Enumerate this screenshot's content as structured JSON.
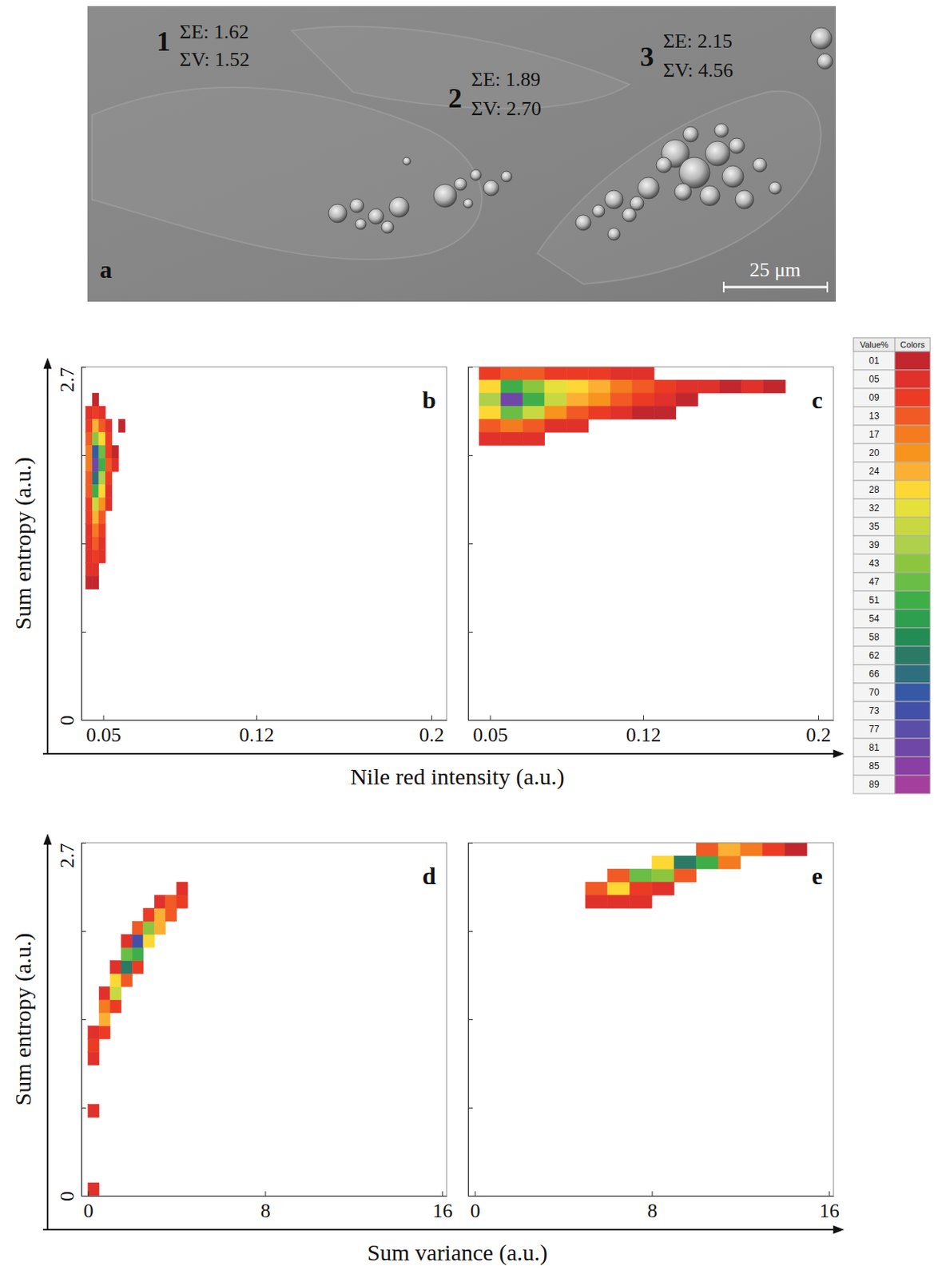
{
  "image": {
    "label": "a",
    "scale_bar": "25 μm",
    "regions": [
      {
        "label": "1",
        "entropy": "ΣE: 1.62",
        "variance": "ΣV: 1.52"
      },
      {
        "label": "2",
        "entropy": "ΣE: 1.89",
        "variance": "ΣV: 2.70"
      },
      {
        "label": "3",
        "entropy": "ΣE: 2.15",
        "variance": "ΣV: 4.56"
      }
    ]
  },
  "chart_data": [
    {
      "type": "heatmap",
      "label": "b",
      "xlabel": "Nile red intensity (a.u.)",
      "ylabel": "Sum entropy (a.u.)",
      "xlim": [
        0.04,
        0.207
      ],
      "xticks": [
        0.05,
        0.12,
        0.2
      ],
      "ylim": [
        0,
        2.7
      ],
      "yticks": [
        0,
        {
          "value": 0.675,
          "label": null
        },
        {
          "value": 1.35,
          "label": null
        },
        {
          "value": 2.025,
          "label": null
        },
        2.7
      ],
      "bin_size": [
        0.003,
        0.1
      ],
      "cells": [
        [
          0.0465,
          2.45,
          1
        ],
        [
          0.0435,
          2.35,
          5
        ],
        [
          0.0465,
          2.35,
          9
        ],
        [
          0.0495,
          2.35,
          5
        ],
        [
          0.0435,
          2.25,
          9
        ],
        [
          0.0465,
          2.25,
          24
        ],
        [
          0.0495,
          2.25,
          13
        ],
        [
          0.0525,
          2.25,
          5
        ],
        [
          0.0585,
          2.25,
          1
        ],
        [
          0.0435,
          2.15,
          13
        ],
        [
          0.0465,
          2.15,
          43
        ],
        [
          0.0495,
          2.15,
          28
        ],
        [
          0.0525,
          2.15,
          9
        ],
        [
          0.0435,
          2.05,
          17
        ],
        [
          0.0465,
          2.05,
          70
        ],
        [
          0.0495,
          2.05,
          47
        ],
        [
          0.0525,
          2.05,
          9
        ],
        [
          0.0555,
          2.05,
          1
        ],
        [
          0.0435,
          1.95,
          17
        ],
        [
          0.0465,
          1.95,
          81
        ],
        [
          0.0495,
          1.95,
          51
        ],
        [
          0.0525,
          1.95,
          13
        ],
        [
          0.0555,
          1.95,
          5
        ],
        [
          0.0435,
          1.85,
          13
        ],
        [
          0.0465,
          1.85,
          66
        ],
        [
          0.0495,
          1.85,
          39
        ],
        [
          0.0525,
          1.85,
          9
        ],
        [
          0.0435,
          1.75,
          13
        ],
        [
          0.0465,
          1.75,
          51
        ],
        [
          0.0495,
          1.75,
          28
        ],
        [
          0.0525,
          1.75,
          5
        ],
        [
          0.0435,
          1.65,
          9
        ],
        [
          0.0465,
          1.65,
          35
        ],
        [
          0.0495,
          1.65,
          20
        ],
        [
          0.0525,
          1.65,
          5
        ],
        [
          0.0435,
          1.55,
          9
        ],
        [
          0.0465,
          1.55,
          24
        ],
        [
          0.0495,
          1.55,
          13
        ],
        [
          0.0435,
          1.45,
          5
        ],
        [
          0.0465,
          1.45,
          17
        ],
        [
          0.0495,
          1.45,
          9
        ],
        [
          0.0435,
          1.35,
          5
        ],
        [
          0.0465,
          1.35,
          13
        ],
        [
          0.0495,
          1.35,
          5
        ],
        [
          0.0435,
          1.25,
          5
        ],
        [
          0.0465,
          1.25,
          9
        ],
        [
          0.0495,
          1.25,
          5
        ],
        [
          0.0435,
          1.15,
          5
        ],
        [
          0.0465,
          1.15,
          5
        ],
        [
          0.0435,
          1.05,
          1
        ],
        [
          0.0465,
          1.05,
          1
        ]
      ]
    },
    {
      "type": "heatmap",
      "label": "c",
      "tick_labels": "x",
      "xlim": [
        0.04,
        0.207
      ],
      "xticks": [
        0.05,
        0.12,
        0.2
      ],
      "ylim": [
        0,
        2.7
      ],
      "yticks": [
        0,
        0.675,
        1.35,
        2.025,
        2.7
      ],
      "bin_size": [
        0.01,
        0.1
      ],
      "cells": [
        [
          0.05,
          2.65,
          9
        ],
        [
          0.06,
          2.65,
          13
        ],
        [
          0.07,
          2.65,
          13
        ],
        [
          0.08,
          2.65,
          9
        ],
        [
          0.09,
          2.65,
          9
        ],
        [
          0.1,
          2.65,
          9
        ],
        [
          0.11,
          2.65,
          5
        ],
        [
          0.12,
          2.65,
          5
        ],
        [
          0.05,
          2.55,
          28
        ],
        [
          0.06,
          2.55,
          51
        ],
        [
          0.07,
          2.55,
          43
        ],
        [
          0.08,
          2.55,
          32
        ],
        [
          0.09,
          2.55,
          28
        ],
        [
          0.1,
          2.55,
          24
        ],
        [
          0.11,
          2.55,
          17
        ],
        [
          0.12,
          2.55,
          13
        ],
        [
          0.13,
          2.55,
          9
        ],
        [
          0.14,
          2.55,
          5
        ],
        [
          0.15,
          2.55,
          5
        ],
        [
          0.16,
          2.55,
          1
        ],
        [
          0.17,
          2.55,
          5
        ],
        [
          0.18,
          2.55,
          1
        ],
        [
          0.05,
          2.45,
          39
        ],
        [
          0.06,
          2.45,
          81
        ],
        [
          0.07,
          2.45,
          51
        ],
        [
          0.08,
          2.45,
          35
        ],
        [
          0.09,
          2.45,
          24
        ],
        [
          0.1,
          2.45,
          20
        ],
        [
          0.11,
          2.45,
          13
        ],
        [
          0.12,
          2.45,
          9
        ],
        [
          0.13,
          2.45,
          5
        ],
        [
          0.14,
          2.45,
          1
        ],
        [
          0.05,
          2.35,
          28
        ],
        [
          0.06,
          2.35,
          47
        ],
        [
          0.07,
          2.35,
          35
        ],
        [
          0.08,
          2.35,
          20
        ],
        [
          0.09,
          2.35,
          13
        ],
        [
          0.1,
          2.35,
          9
        ],
        [
          0.11,
          2.35,
          5
        ],
        [
          0.12,
          2.35,
          1
        ],
        [
          0.13,
          2.35,
          1
        ],
        [
          0.05,
          2.25,
          13
        ],
        [
          0.06,
          2.25,
          17
        ],
        [
          0.07,
          2.25,
          13
        ],
        [
          0.08,
          2.25,
          5
        ],
        [
          0.09,
          2.25,
          5
        ],
        [
          0.05,
          2.15,
          5
        ],
        [
          0.06,
          2.15,
          5
        ],
        [
          0.07,
          2.15,
          5
        ]
      ]
    },
    {
      "type": "heatmap",
      "label": "d",
      "xlabel": "Sum variance (a.u.)",
      "ylabel": "Sum entropy (a.u.)",
      "xlim": [
        -0.3,
        16.2
      ],
      "xticks": [
        0,
        8,
        16
      ],
      "ylim": [
        0,
        2.7
      ],
      "yticks": [
        0,
        {
          "value": 0.675,
          "label": null
        },
        {
          "value": 1.35,
          "label": null
        },
        {
          "value": 2.025,
          "label": null
        },
        2.7
      ],
      "bin_size": [
        0.5,
        0.1
      ],
      "cells": [
        [
          0.25,
          0.05,
          5
        ],
        [
          0.25,
          0.65,
          5
        ],
        [
          0.25,
          1.05,
          5
        ],
        [
          0.25,
          1.15,
          9
        ],
        [
          0.25,
          1.25,
          5
        ],
        [
          0.75,
          1.25,
          9
        ],
        [
          0.75,
          1.35,
          24
        ],
        [
          0.75,
          1.45,
          17
        ],
        [
          0.75,
          1.55,
          5
        ],
        [
          1.25,
          1.45,
          9
        ],
        [
          1.25,
          1.55,
          35
        ],
        [
          1.25,
          1.65,
          28
        ],
        [
          1.25,
          1.75,
          5
        ],
        [
          1.75,
          1.65,
          13
        ],
        [
          1.75,
          1.75,
          62
        ],
        [
          1.75,
          1.85,
          47
        ],
        [
          1.75,
          1.95,
          5
        ],
        [
          2.25,
          1.75,
          9
        ],
        [
          2.25,
          1.85,
          51
        ],
        [
          2.25,
          1.95,
          73
        ],
        [
          2.25,
          2.05,
          13
        ],
        [
          2.75,
          1.95,
          28
        ],
        [
          2.75,
          2.05,
          43
        ],
        [
          2.75,
          2.15,
          9
        ],
        [
          3.25,
          2.05,
          24
        ],
        [
          3.25,
          2.15,
          24
        ],
        [
          3.25,
          2.25,
          5
        ],
        [
          3.75,
          2.15,
          13
        ],
        [
          3.75,
          2.25,
          13
        ],
        [
          4.25,
          2.25,
          9
        ],
        [
          4.25,
          2.35,
          5
        ]
      ]
    },
    {
      "type": "heatmap",
      "label": "e",
      "tick_labels": "x",
      "xlim": [
        -0.3,
        16.2
      ],
      "xticks": [
        0,
        8,
        16
      ],
      "ylim": [
        0,
        2.7
      ],
      "yticks": [
        0,
        0.675,
        1.35,
        2.025,
        2.7
      ],
      "bin_size": [
        1,
        0.1
      ],
      "cells": [
        [
          5.5,
          2.35,
          13
        ],
        [
          5.5,
          2.25,
          5
        ],
        [
          6.5,
          2.35,
          28
        ],
        [
          6.5,
          2.45,
          13
        ],
        [
          6.5,
          2.25,
          5
        ],
        [
          7.5,
          2.45,
          47
        ],
        [
          7.5,
          2.35,
          9
        ],
        [
          7.5,
          2.25,
          5
        ],
        [
          8.5,
          2.45,
          43
        ],
        [
          8.5,
          2.55,
          28
        ],
        [
          8.5,
          2.35,
          5
        ],
        [
          9.5,
          2.55,
          62
        ],
        [
          9.5,
          2.45,
          13
        ],
        [
          10.5,
          2.55,
          51
        ],
        [
          10.5,
          2.65,
          13
        ],
        [
          11.5,
          2.55,
          17
        ],
        [
          11.5,
          2.65,
          24
        ],
        [
          12.5,
          2.65,
          17
        ],
        [
          13.5,
          2.65,
          9
        ],
        [
          14.5,
          2.65,
          1
        ]
      ]
    }
  ],
  "colorbar": {
    "headers": [
      "Value%",
      "Colors"
    ],
    "ticks": [
      {
        "value": 1,
        "label": "01"
      },
      {
        "value": 5,
        "label": "05"
      },
      {
        "value": 9,
        "label": "09"
      },
      13,
      17,
      20,
      24,
      28,
      32,
      35,
      39,
      43,
      47,
      51,
      54,
      58,
      62,
      66,
      70,
      73,
      77,
      81,
      85,
      89
    ],
    "colors": [
      "#c1272d",
      "#e0312b",
      "#ec3b24",
      "#f15a24",
      "#f47b20",
      "#f7941d",
      "#fbb034",
      "#fdd835",
      "#e6e03a",
      "#c8d840",
      "#afd04a",
      "#8cc63f",
      "#6abd45",
      "#3fae49",
      "#2e9e4f",
      "#238b54",
      "#2b7a66",
      "#2f6f7d",
      "#3559a4",
      "#4350a8",
      "#5b4ea8",
      "#6f47a6",
      "#8a3fa4",
      "#a43f9e"
    ]
  }
}
